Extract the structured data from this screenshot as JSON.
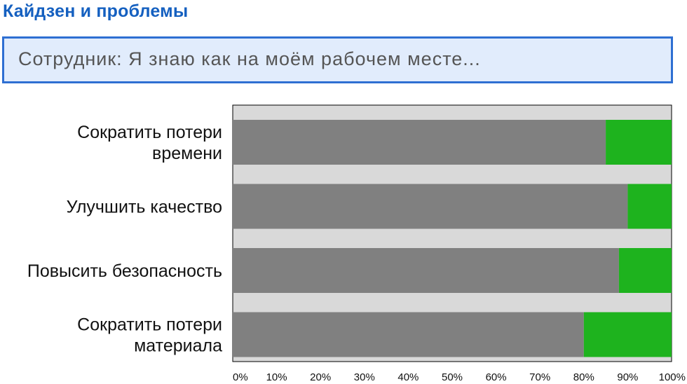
{
  "header": {
    "title": "Кайдзен и проблемы",
    "banner_text": "Сотрудник: Я знаю как на моём рабочем месте..."
  },
  "colors": {
    "title": "#1560c0",
    "banner_bg": "#e1ecfc",
    "banner_border": "#2e6fd2",
    "bar_gray": "#808080",
    "bar_green": "#1eb31e",
    "plot_bg": "#d9d9d9"
  },
  "chart_data": {
    "type": "bar",
    "orientation": "horizontal",
    "stacked": true,
    "categories": [
      [
        "Сократить потери",
        "времени"
      ],
      [
        "Улучшить качество"
      ],
      [
        "Повысить безопасность"
      ],
      [
        "Сократить потери",
        "материала"
      ]
    ],
    "series": [
      {
        "values": [
          85,
          90,
          88,
          80
        ],
        "color": "#808080"
      },
      {
        "values": [
          15,
          10,
          12,
          20
        ],
        "color": "#1eb31e"
      }
    ],
    "x_ticks": [
      "0%",
      "10%",
      "20%",
      "30%",
      "40%",
      "50%",
      "60%",
      "70%",
      "80%",
      "90%",
      "100%"
    ],
    "xlim": [
      0,
      100
    ],
    "grid": false,
    "legend": "none"
  }
}
